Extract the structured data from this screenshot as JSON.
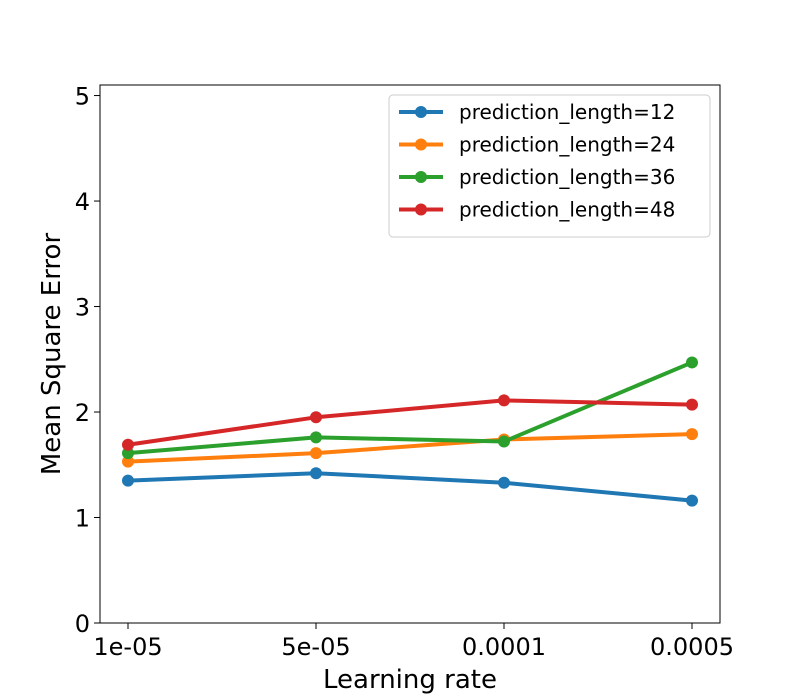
{
  "chart_data": {
    "type": "line",
    "title": "",
    "xlabel": "Learning rate",
    "ylabel": "Mean Square Error",
    "categories": [
      "1e-05",
      "5e-05",
      "0.0001",
      "0.0005"
    ],
    "ylim": [
      0,
      5.1
    ],
    "yticks": [
      0,
      1,
      2,
      3,
      4,
      5
    ],
    "grid": false,
    "legend_position": "top-right",
    "series": [
      {
        "name": "prediction_length=12",
        "color": "#1f77b4",
        "values": [
          1.35,
          1.42,
          1.33,
          1.16
        ]
      },
      {
        "name": "prediction_length=24",
        "color": "#ff7f0e",
        "values": [
          1.53,
          1.61,
          1.74,
          1.79
        ]
      },
      {
        "name": "prediction_length=36",
        "color": "#2ca02c",
        "values": [
          1.61,
          1.76,
          1.72,
          2.47
        ]
      },
      {
        "name": "prediction_length=48",
        "color": "#d62728",
        "values": [
          1.69,
          1.95,
          2.11,
          2.07
        ]
      }
    ]
  }
}
